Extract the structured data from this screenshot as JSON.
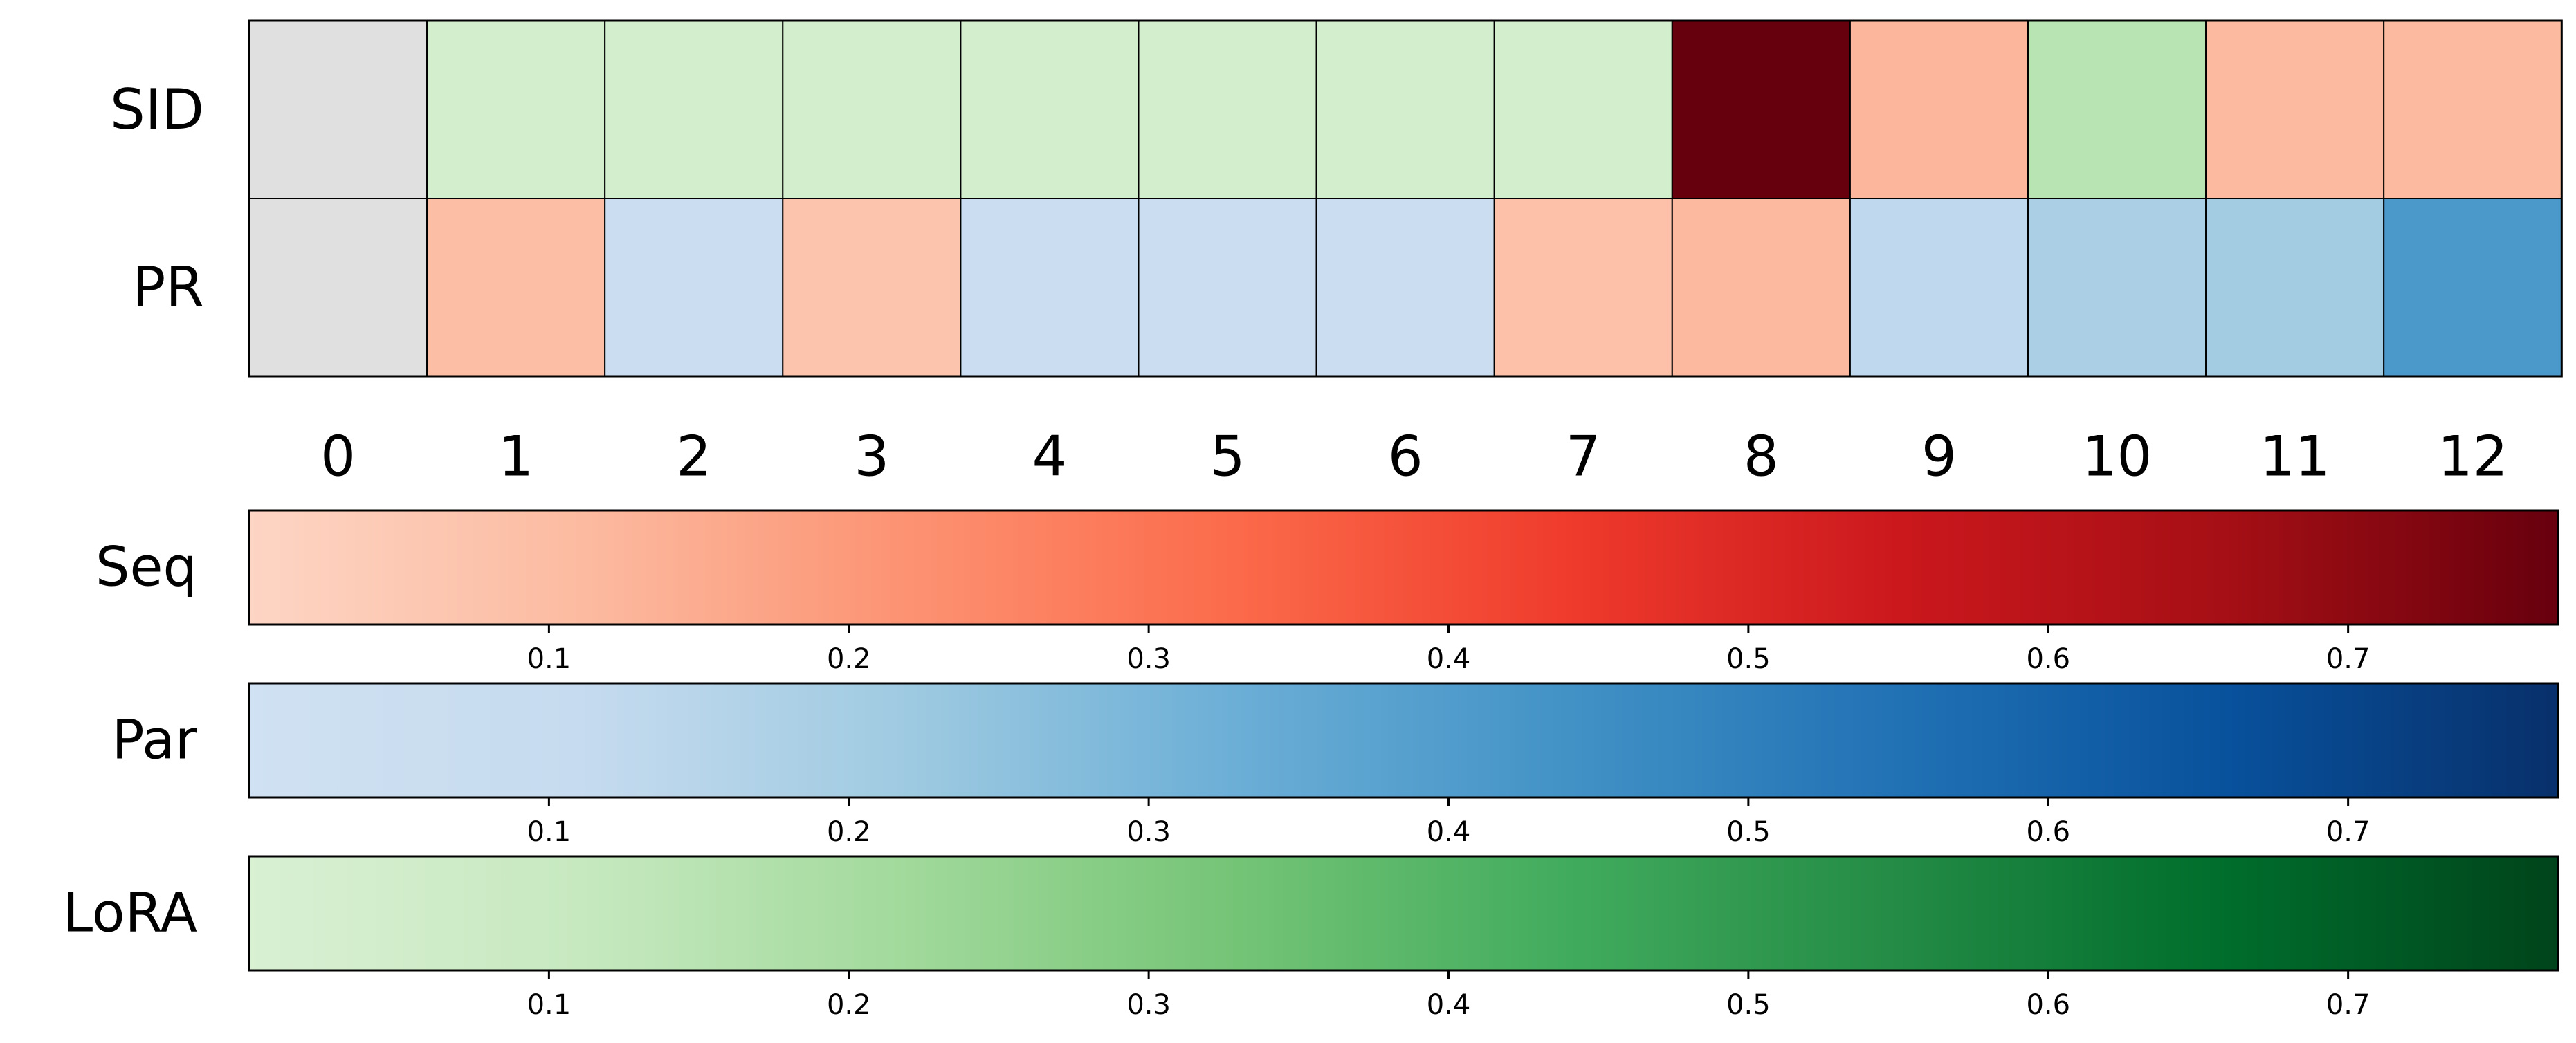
{
  "chart_data": [
    {
      "type": "heatmap",
      "rows": [
        "SID",
        "PR"
      ],
      "columns": [
        "0",
        "1",
        "2",
        "3",
        "4",
        "5",
        "6",
        "7",
        "8",
        "9",
        "10",
        "11",
        "12"
      ],
      "cells": [
        [
          "#e0e0e0",
          "#d3eecd",
          "#d3eecd",
          "#d3eecd",
          "#d3eecd",
          "#d3eecd",
          "#d3eecd",
          "#d3eecd",
          "#67000d",
          "#fcb69b",
          "#b8e3b2",
          "#fcbba1",
          "#fcbba1"
        ],
        [
          "#e0e0e0",
          "#fcbea5",
          "#cbdef1",
          "#fcc4ad",
          "#cbdef1",
          "#cbdef1",
          "#cbdef1",
          "#fcc1a8",
          "#fcb99f",
          "#bfd8ed",
          "#abd0e6",
          "#a3cce3",
          "#4b98ca"
        ]
      ],
      "cell_meaning": {
        "first_column": "#e0e0e0",
        "scales": "Reds = Seq, Blues = Par, Greens = LoRA"
      }
    },
    {
      "type": "colorbar",
      "label": "Seq",
      "range": [
        0.0,
        0.77
      ],
      "ticks": [
        "0.1",
        "0.2",
        "0.3",
        "0.4",
        "0.5",
        "0.6",
        "0.7"
      ],
      "colors": [
        "#fdd5c4",
        "#fcbba1",
        "#fc9272",
        "#fb6a4a",
        "#ef3b2c",
        "#cb181d",
        "#a50f15",
        "#67000d"
      ]
    },
    {
      "type": "colorbar",
      "label": "Par",
      "range": [
        0.0,
        0.77
      ],
      "ticks": [
        "0.1",
        "0.2",
        "0.3",
        "0.4",
        "0.5",
        "0.6",
        "0.7"
      ],
      "colors": [
        "#cfe1f2",
        "#c6dbef",
        "#9ecae1",
        "#6baed6",
        "#4292c6",
        "#2171b5",
        "#08519c",
        "#08306b"
      ]
    },
    {
      "type": "colorbar",
      "label": "LoRA",
      "range": [
        0.0,
        0.77
      ],
      "ticks": [
        "0.1",
        "0.2",
        "0.3",
        "0.4",
        "0.5",
        "0.6",
        "0.7"
      ],
      "colors": [
        "#d9f0d3",
        "#c7e9c0",
        "#a1d99b",
        "#74c476",
        "#41ab5d",
        "#238b45",
        "#006d2c",
        "#00441b"
      ]
    }
  ]
}
